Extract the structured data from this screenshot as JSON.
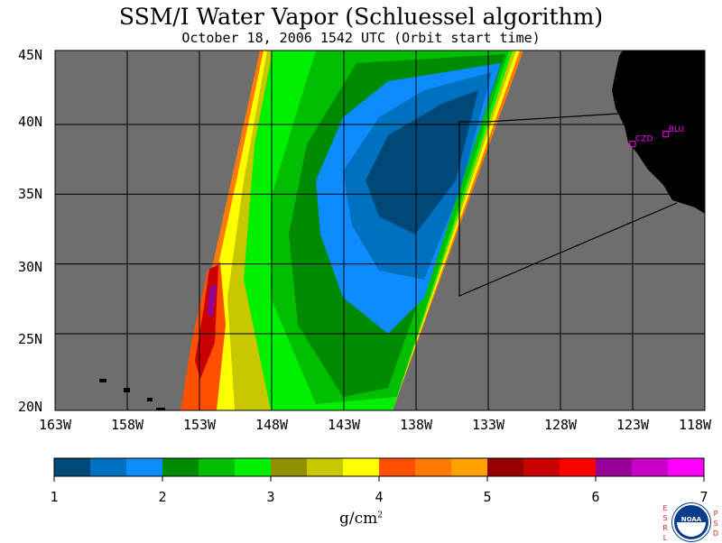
{
  "title": "SSM/I Water Vapor (Schluessel algorithm)",
  "subtitle": "October 18, 2006  1542 UTC  (Orbit start time)",
  "map": {
    "lat_labels": [
      "45N",
      "40N",
      "35N",
      "30N",
      "25N",
      "20N"
    ],
    "lon_labels": [
      "163W",
      "158W",
      "153W",
      "148W",
      "143W",
      "138W",
      "133W",
      "128W",
      "123W",
      "118W"
    ],
    "stations": [
      {
        "name": "CZD",
        "lon": -123.0,
        "lat": 38.6
      },
      {
        "name": "BLU",
        "lon": -120.7,
        "lat": 39.3
      }
    ],
    "background_color": "#6e6e6e",
    "land_color": "#000000",
    "station_color": "#ff00ff",
    "grid_color": "#000000"
  },
  "colorbar": {
    "colors": [
      "#004878",
      "#0070c0",
      "#0c8cff",
      "#008a00",
      "#00be00",
      "#00f000",
      "#909000",
      "#c8c800",
      "#ffff00",
      "#ff5000",
      "#ff7a00",
      "#ffa000",
      "#960000",
      "#c80000",
      "#ff0000",
      "#960096",
      "#c800c8",
      "#ff00ff"
    ],
    "tick_labels": [
      "1",
      "2",
      "3",
      "4",
      "5",
      "6",
      "7"
    ],
    "unit_label": "g/cm",
    "unit_sup": "2"
  },
  "logo": {
    "text": "NOAA",
    "side_left": [
      "E",
      "S",
      "R",
      "L"
    ],
    "side_right": [
      "P",
      "S",
      "D"
    ]
  }
}
